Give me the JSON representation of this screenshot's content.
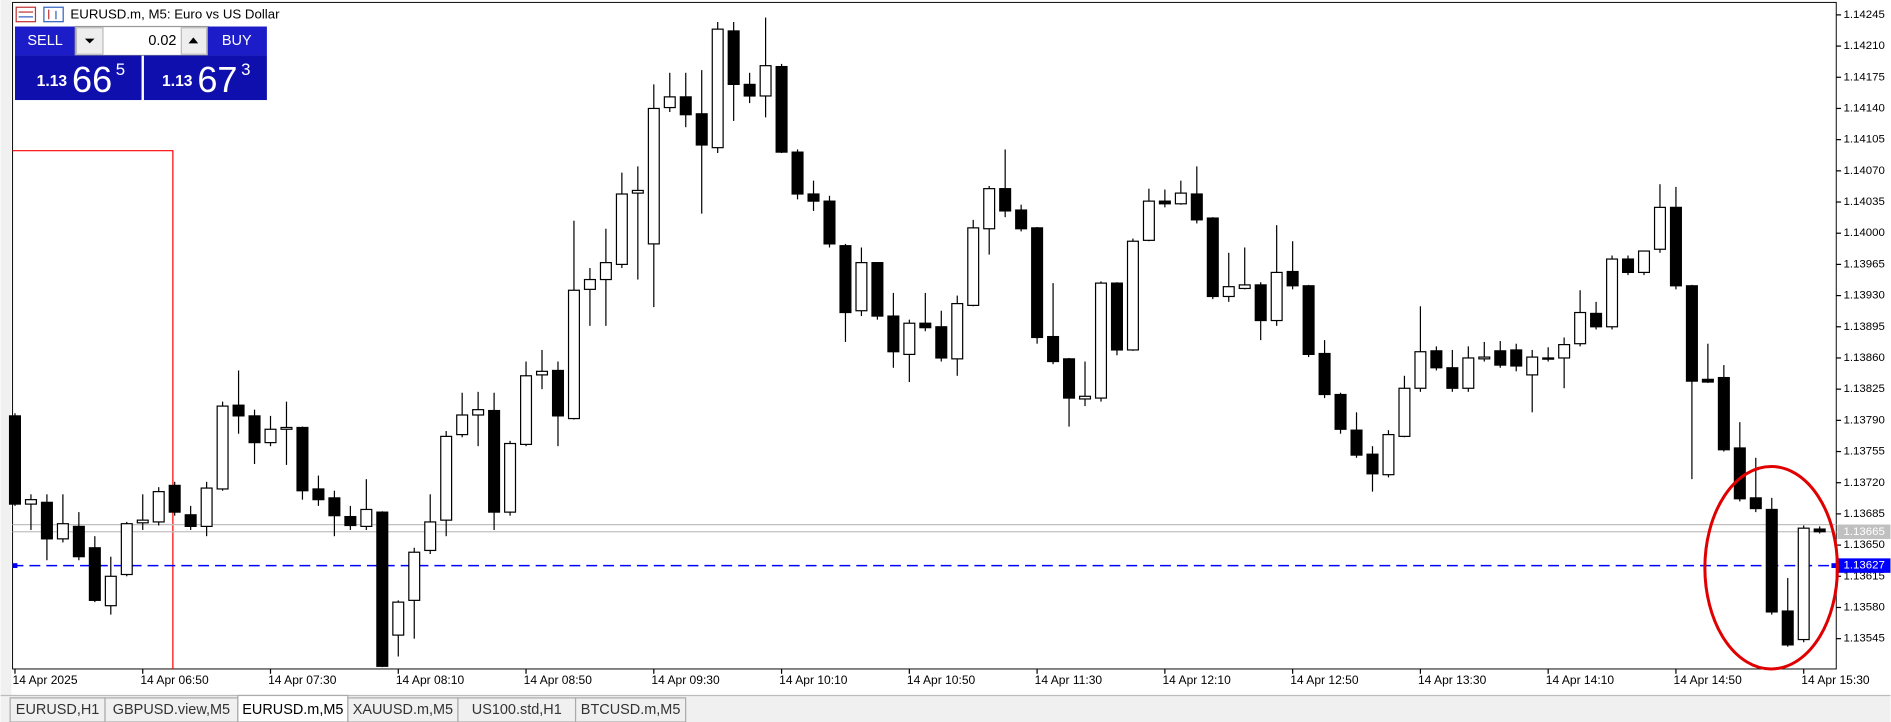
{
  "window": {
    "title": "EURUSD.m, M5:  Euro vs US Dollar",
    "tabs": [
      "EURUSD,H1",
      "GBPUSD.view,M5",
      "EURUSD.m,M5",
      "XAUUSD.m,M5",
      "US100.std,H1",
      "BTCUSD.m,M5"
    ],
    "active_tab": 2
  },
  "trade_panel": {
    "sell_label": "SELL",
    "buy_label": "BUY",
    "lot": "0.02",
    "sell_price": {
      "big": "1.13",
      "pips": "66",
      "point": "5"
    },
    "buy_price": {
      "big": "1.13",
      "pips": "67",
      "point": "3"
    }
  },
  "chart_data": {
    "type": "candlestick",
    "categories": [
      "14 Apr 2025",
      null,
      null,
      null,
      null,
      null,
      null,
      null,
      "14 Apr 06:50",
      null,
      null,
      null,
      null,
      null,
      null,
      null,
      "14 Apr 07:30",
      null,
      null,
      null,
      null,
      null,
      null,
      null,
      "14 Apr 08:10",
      null,
      null,
      null,
      null,
      null,
      null,
      null,
      "14 Apr 08:50",
      null,
      null,
      null,
      null,
      null,
      null,
      null,
      "14 Apr 09:30",
      null,
      null,
      null,
      null,
      null,
      null,
      null,
      "14 Apr 10:10",
      null,
      null,
      null,
      null,
      null,
      null,
      null,
      "14 Apr 10:50",
      null,
      null,
      null,
      null,
      null,
      null,
      null,
      "14 Apr 11:30",
      null,
      null,
      null,
      null,
      null,
      null,
      null,
      "14 Apr 12:10",
      null,
      null,
      null,
      null,
      null,
      null,
      null,
      "14 Apr 12:50",
      null,
      null,
      null,
      null,
      null,
      null,
      null,
      "14 Apr 13:30",
      null,
      null,
      null,
      null,
      null,
      null,
      null,
      "14 Apr 14:10",
      null,
      null,
      null,
      null,
      null,
      null,
      null,
      "14 Apr 14:50",
      null,
      null,
      null,
      null,
      null,
      null,
      null,
      "14 Apr 15:30",
      null
    ],
    "open": [
      1.13795,
      1.13696,
      1.13698,
      1.13657,
      1.13671,
      1.13647,
      1.13582,
      1.13617,
      1.13675,
      1.13676,
      1.13717,
      1.13684,
      1.13671,
      1.13713,
      1.13807,
      1.13795,
      1.13765,
      1.1378,
      1.13782,
      1.13713,
      1.13703,
      1.13682,
      1.13671,
      1.13687,
      1.13549,
      1.13588,
      1.13644,
      1.13678,
      1.13774,
      1.13796,
      1.13801,
      1.13687,
      1.13763,
      1.13841,
      1.13846,
      1.13792,
      1.13937,
      1.13948,
      1.13965,
      1.14045,
      1.13988,
      1.14141,
      1.14153,
      1.14134,
      1.14096,
      1.14227,
      1.14167,
      1.14154,
      1.14187,
      1.14091,
      1.14044,
      1.14036,
      1.13986,
      1.13913,
      1.13967,
      1.13907,
      1.13864,
      1.13899,
      1.13895,
      1.13859,
      1.13919,
      1.14005,
      1.1405,
      1.14026,
      1.14006,
      1.13884,
      1.13859,
      1.13814,
      1.13815,
      1.13944,
      1.13869,
      1.13992,
      1.14036,
      1.14033,
      1.14044,
      1.14017,
      1.13929,
      1.13938,
      1.13942,
      1.13902,
      1.13957,
      1.13941,
      1.13865,
      1.13819,
      1.13779,
      1.13752,
      1.13729,
      1.13772,
      1.13826,
      1.13868,
      1.13849,
      1.13826,
      1.13859,
      1.13868,
      1.13869,
      1.13841,
      1.1386,
      1.1386,
      1.13876,
      1.1391,
      1.13895,
      1.13971,
      1.13956,
      1.13982,
      1.14029,
      1.13941,
      1.13836,
      1.13838,
      1.13759,
      1.13703,
      1.1369,
      1.13576,
      1.13544,
      1.13668
    ],
    "high": [
      1.13798,
      1.13707,
      1.13707,
      1.13707,
      1.13687,
      1.1366,
      1.13637,
      1.13676,
      1.13707,
      1.13715,
      1.13721,
      1.13694,
      1.13721,
      1.13811,
      1.13846,
      1.13802,
      1.13795,
      1.13811,
      1.13783,
      1.13728,
      1.13711,
      1.13694,
      1.13724,
      1.13688,
      1.13588,
      1.13647,
      1.13707,
      1.13778,
      1.13821,
      1.13822,
      1.13821,
      1.13767,
      1.13856,
      1.13869,
      1.13856,
      1.14014,
      1.13961,
      1.14005,
      1.14068,
      1.14075,
      1.14167,
      1.1418,
      1.1418,
      1.14183,
      1.14237,
      1.14237,
      1.1418,
      1.14242,
      1.1419,
      1.14094,
      1.14059,
      1.14042,
      1.13988,
      1.13984,
      1.13967,
      1.13933,
      1.13903,
      1.13933,
      1.13913,
      1.1393,
      1.14015,
      1.14053,
      1.14094,
      1.14032,
      1.14007,
      1.13944,
      1.1386,
      1.13856,
      1.13946,
      1.13945,
      1.13994,
      1.1405,
      1.14049,
      1.14059,
      1.14075,
      1.14018,
      1.13978,
      1.13984,
      1.13945,
      1.14009,
      1.13991,
      1.13942,
      1.1388,
      1.13821,
      1.13799,
      1.13761,
      1.13779,
      1.1384,
      1.13918,
      1.13873,
      1.13869,
      1.13873,
      1.13878,
      1.13879,
      1.13876,
      1.13869,
      1.13872,
      1.13883,
      1.13936,
      1.13923,
      1.13975,
      1.13975,
      1.1398,
      1.14055,
      1.14052,
      1.13942,
      1.13876,
      1.13852,
      1.13788,
      1.13748,
      1.13703,
      1.13613,
      1.13672,
      1.13671
    ],
    "low": [
      1.13694,
      1.13667,
      1.13633,
      1.13653,
      1.13633,
      1.13586,
      1.13572,
      1.13615,
      1.13667,
      1.13672,
      1.13683,
      1.13667,
      1.1366,
      1.13711,
      1.13775,
      1.13741,
      1.13761,
      1.1374,
      1.13701,
      1.13694,
      1.1366,
      1.13667,
      1.13667,
      1.13513,
      1.13525,
      1.13545,
      1.1364,
      1.1366,
      1.13771,
      1.13761,
      1.13667,
      1.13683,
      1.13761,
      1.13825,
      1.13761,
      1.13791,
      1.13896,
      1.13896,
      1.13961,
      1.13948,
      1.13917,
      1.14136,
      1.14119,
      1.14022,
      1.1409,
      1.14126,
      1.14146,
      1.1413,
      1.1409,
      1.14038,
      1.14025,
      1.13984,
      1.13878,
      1.13907,
      1.13903,
      1.13849,
      1.13833,
      1.1389,
      1.13856,
      1.1384,
      1.13918,
      1.13976,
      1.14018,
      1.14002,
      1.13876,
      1.13853,
      1.13783,
      1.13806,
      1.13811,
      1.13863,
      1.13868,
      1.13991,
      1.14029,
      1.14032,
      1.14011,
      1.13926,
      1.13923,
      1.13937,
      1.1388,
      1.13896,
      1.13937,
      1.13861,
      1.13815,
      1.13775,
      1.13748,
      1.1371,
      1.13726,
      1.13771,
      1.13822,
      1.13846,
      1.13822,
      1.13822,
      1.13856,
      1.13849,
      1.13845,
      1.13799,
      1.13856,
      1.13826,
      1.13873,
      1.13892,
      1.13892,
      1.13953,
      1.13953,
      1.13978,
      1.13937,
      1.13724,
      1.13832,
      1.13755,
      1.13699,
      1.13687,
      1.13572,
      1.13536,
      1.13541,
      1.13663
    ],
    "close": [
      1.13696,
      1.13701,
      1.13657,
      1.13674,
      1.13637,
      1.13588,
      1.13615,
      1.13674,
      1.13678,
      1.1371,
      1.13687,
      1.13671,
      1.13714,
      1.13806,
      1.13795,
      1.13765,
      1.1378,
      1.13782,
      1.13711,
      1.13701,
      1.13683,
      1.13672,
      1.1369,
      1.13514,
      1.13586,
      1.13642,
      1.13676,
      1.13772,
      1.13796,
      1.13802,
      1.13687,
      1.13764,
      1.1384,
      1.13845,
      1.13795,
      1.13936,
      1.13948,
      1.13967,
      1.14044,
      1.14048,
      1.1414,
      1.14153,
      1.14133,
      1.14099,
      1.14229,
      1.14167,
      1.14154,
      1.14188,
      1.14091,
      1.14044,
      1.14036,
      1.13988,
      1.13911,
      1.13967,
      1.13907,
      1.13867,
      1.13899,
      1.13894,
      1.1386,
      1.13921,
      1.14006,
      1.1405,
      1.14025,
      1.14005,
      1.13883,
      1.13856,
      1.13815,
      1.13817,
      1.13944,
      1.13869,
      1.13991,
      1.14036,
      1.14033,
      1.14045,
      1.14015,
      1.13929,
      1.1394,
      1.13942,
      1.13902,
      1.13956,
      1.13941,
      1.13864,
      1.13819,
      1.1378,
      1.13751,
      1.1373,
      1.13774,
      1.13826,
      1.13867,
      1.13849,
      1.13826,
      1.1386,
      1.13861,
      1.13852,
      1.13851,
      1.13861,
      1.13859,
      1.13875,
      1.13911,
      1.13895,
      1.13971,
      1.13956,
      1.1398,
      1.14029,
      1.13941,
      1.13834,
      1.13833,
      1.13757,
      1.13702,
      1.13691,
      1.13575,
      1.13538,
      1.13669,
      1.13665
    ],
    "up_color": "#ffffff",
    "down_color": "#000000",
    "wick_color": "#000000",
    "ylim": [
      1.13511,
      1.14259
    ],
    "yticks": [
      1.14245,
      {
        "value": 1.1421,
        "label": "1.14210"
      },
      1.14175,
      {
        "value": 1.1414,
        "label": "1.14140"
      },
      1.14105,
      {
        "value": 1.1407,
        "label": "1.14070"
      },
      1.14035,
      {
        "value": 1.14,
        "label": "1.14000"
      },
      1.13965,
      {
        "value": 1.1393,
        "label": "1.13930"
      },
      1.13895,
      {
        "value": 1.1386,
        "label": "1.13860"
      },
      1.13825,
      {
        "value": 1.1379,
        "label": "1.13790"
      },
      1.13755,
      {
        "value": 1.1372,
        "label": "1.13720"
      },
      1.13685,
      {
        "value": 1.1365,
        "label": "1.13650"
      },
      1.13615,
      {
        "value": 1.1358,
        "label": "1.13580"
      },
      1.13545
    ],
    "ask": 1.13673,
    "price_lines": [
      {
        "value": 1.13665,
        "color": "#c0c0c0",
        "dashed": false
      },
      {
        "value": 1.13627,
        "color": "#0000ff",
        "dashed": true
      }
    ],
    "grid": false
  }
}
